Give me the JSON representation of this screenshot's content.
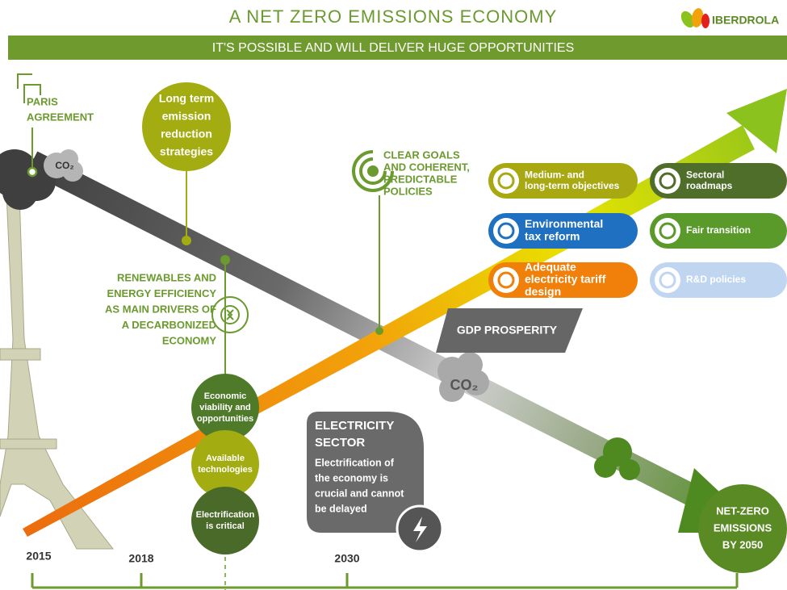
{
  "header": {
    "title": "A NET ZERO EMISSIONS ECONOMY",
    "logo": "IBERDROLA",
    "subtitle": "IT'S POSSIBLE AND WILL DELIVER HUGE OPPORTUNITIES"
  },
  "paris": {
    "lines": [
      "PARIS",
      "AGREEMENT"
    ]
  },
  "co2_start": "CO₂",
  "strategies": {
    "lines": [
      "Long term",
      "emission",
      "reduction",
      "strategies"
    ]
  },
  "renewables": {
    "lines": [
      "RENEWABLES AND",
      "ENERGY EFFICIENCY",
      "AS MAIN DRIVERS OF",
      "A DECARBONIZED",
      "ECONOMY"
    ]
  },
  "circles": [
    {
      "lines": [
        "Economic",
        "viability and",
        "opportunities"
      ]
    },
    {
      "lines": [
        "Available",
        "technologies"
      ]
    },
    {
      "lines": [
        "Electrification",
        "is critical"
      ]
    }
  ],
  "policies": {
    "lines": [
      "CLEAR GOALS",
      "AND COHERENT,",
      "PREDICTABLE",
      "POLICIES"
    ]
  },
  "pills": [
    {
      "lines": [
        "Medium- and",
        "long-term objectives"
      ]
    },
    {
      "lines": [
        "Environmental",
        "tax reform"
      ]
    },
    {
      "lines": [
        "Adequate",
        "electricity tariff",
        "design"
      ]
    },
    {
      "lines": [
        "Sectoral",
        "roadmaps"
      ]
    },
    {
      "lines": [
        "Fair transition"
      ]
    },
    {
      "lines": [
        "R&D policies"
      ]
    }
  ],
  "gdp": "GDP PROSPERITY",
  "co2_end": "CO₂",
  "electricity": {
    "title": [
      "ELECTRICITY",
      "SECTOR"
    ],
    "lines": [
      "Electrification of",
      "the economy is",
      "crucial and cannot",
      "be delayed"
    ]
  },
  "net_zero": {
    "lines": [
      "NET-ZERO",
      "EMISSIONS",
      "BY 2050"
    ]
  },
  "timeline": [
    "2015",
    "2018",
    "2030"
  ]
}
